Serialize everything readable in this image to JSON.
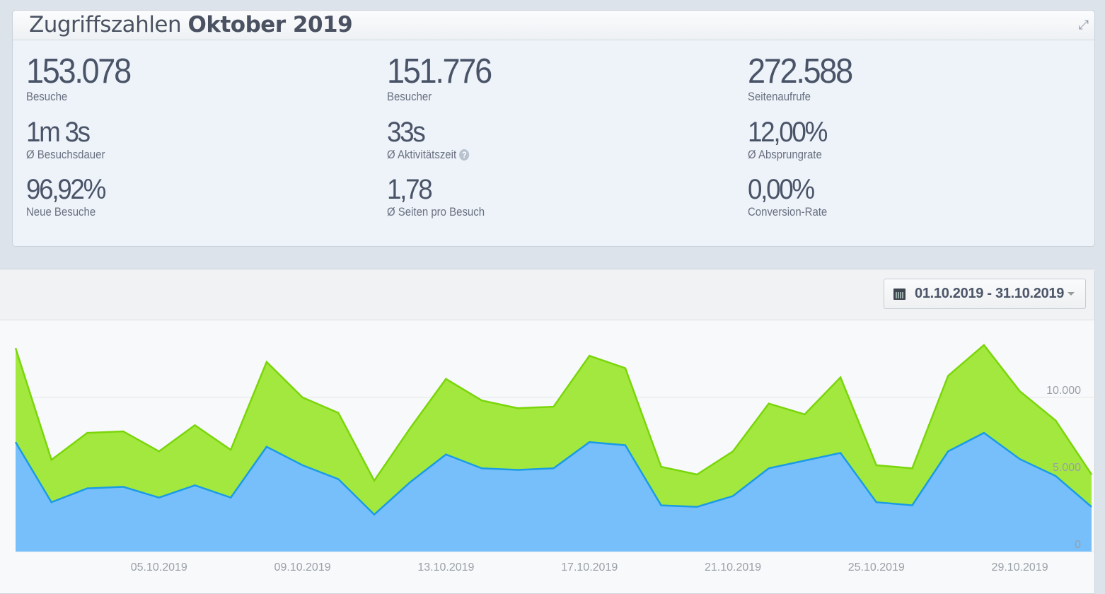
{
  "header": {
    "title_regular": "Zugriffszahlen",
    "title_bold": "Oktober 2019"
  },
  "stats": [
    {
      "value": "153.078",
      "label": "Besuche"
    },
    {
      "value": "151.776",
      "label": "Besucher"
    },
    {
      "value": "272.588",
      "label": "Seitenaufrufe"
    },
    {
      "value": "1m 3s",
      "label": "Ø Besuchsdauer"
    },
    {
      "value": "33s",
      "label": "Ø Aktivitätszeit",
      "help": "?"
    },
    {
      "value": "12,00%",
      "label": "Ø Absprungrate"
    },
    {
      "value": "96,92%",
      "label": "Neue Besuche"
    },
    {
      "value": "1,78",
      "label": "Ø Seiten pro Besuch"
    },
    {
      "value": "0,00%",
      "label": "Conversion-Rate"
    }
  ],
  "date_range": {
    "label": "01.10.2019 - 31.10.2019"
  },
  "chart_data": {
    "type": "area",
    "ylim": [
      0,
      13500
    ],
    "yticks": [
      "0",
      "5.000",
      "10.000"
    ],
    "ytick_values": [
      0,
      5000,
      10000
    ],
    "xtick_labels": [
      "05.10.2019",
      "09.10.2019",
      "13.10.2019",
      "17.10.2019",
      "21.10.2019",
      "25.10.2019",
      "29.10.2019"
    ],
    "xtick_indices": [
      4,
      8,
      12,
      16,
      20,
      24,
      28
    ],
    "days": 31,
    "series": [
      {
        "name": "Seitenaufrufe",
        "color": "#a3e83f",
        "line": "#7ad60a",
        "values": [
          13200,
          5950,
          7700,
          7800,
          6500,
          8200,
          6600,
          12300,
          10000,
          9000,
          4600,
          8000,
          11200,
          9800,
          9300,
          9400,
          12700,
          11900,
          5500,
          5000,
          6500,
          9600,
          8900,
          11300,
          5600,
          5400,
          11400,
          13400,
          10400,
          8500,
          5000
        ]
      },
      {
        "name": "Besuche",
        "color": "#77bffb",
        "line": "#1a9be6",
        "values": [
          7100,
          3200,
          4100,
          4200,
          3500,
          4300,
          3500,
          6800,
          5600,
          4700,
          2400,
          4500,
          6300,
          5400,
          5300,
          5400,
          7100,
          6900,
          3000,
          2900,
          3600,
          5400,
          5900,
          6400,
          3200,
          3000,
          6500,
          7700,
          6000,
          4900,
          2900
        ]
      }
    ]
  }
}
